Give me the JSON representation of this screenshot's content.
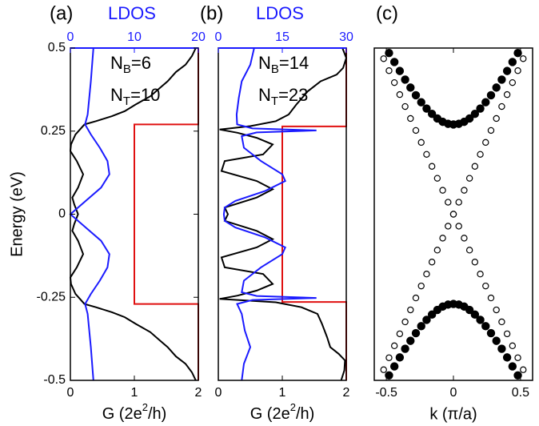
{
  "chart_data": [
    {
      "type": "line",
      "label": "(a)",
      "x2label": "LDOS",
      "ylabel": "Energy (eV)",
      "xlabel": {
        "text": "G (2e",
        "sup": "2",
        "tail": "/h)"
      },
      "annotations": [
        {
          "main": "N",
          "sub": "B",
          "tail": "=6"
        },
        {
          "main": "N",
          "sub": "T",
          "tail": "=10"
        }
      ],
      "xlim": [
        0,
        2
      ],
      "xticks": [
        0,
        1,
        2
      ],
      "x2lim": [
        0,
        20
      ],
      "x2ticks": [
        0,
        10,
        20
      ],
      "ylim": [
        -0.5,
        0.5
      ],
      "yticks": [
        0.5,
        0.25,
        0,
        -0.25,
        -0.5
      ],
      "series": [
        {
          "color": "#e01010",
          "x": [
            2,
            2,
            1,
            1,
            2,
            2
          ],
          "y": [
            0.5,
            0.27,
            0.27,
            -0.27,
            -0.27,
            -0.5
          ]
        },
        {
          "color": "#000000",
          "x": [
            1.96,
            1.9,
            1.8,
            1.65,
            1.52,
            1.4,
            1.25,
            1.02,
            0.85,
            0.65,
            0.4,
            0.22,
            0.08,
            0.01,
            0,
            0.1,
            0.2,
            0.12,
            0.03,
            0.06,
            0.12,
            0.06,
            0.03,
            0.12,
            0.2,
            0.1,
            0,
            0.01,
            0.08,
            0.22,
            0.4,
            0.65,
            0.85,
            1.02,
            1.25,
            1.4,
            1.52,
            1.65,
            1.8,
            1.9,
            1.96
          ],
          "y": [
            0.5,
            0.476,
            0.45,
            0.428,
            0.4,
            0.38,
            0.355,
            0.33,
            0.31,
            0.295,
            0.28,
            0.27,
            0.24,
            0.21,
            0.19,
            0.16,
            0.12,
            0.08,
            0.05,
            0.03,
            0,
            -0.03,
            -0.05,
            -0.08,
            -0.12,
            -0.16,
            -0.19,
            -0.21,
            -0.24,
            -0.27,
            -0.28,
            -0.295,
            -0.31,
            -0.33,
            -0.355,
            -0.38,
            -0.4,
            -0.428,
            -0.45,
            -0.476,
            -0.5
          ]
        },
        {
          "color": "#1a1aff",
          "axis": "x2",
          "x": [
            3.6,
            3.2,
            2.7,
            2.3,
            3.2,
            4.6,
            5.8,
            6.1,
            4.8,
            2.4,
            0,
            2.4,
            4.8,
            6.1,
            5.8,
            4.6,
            3.2,
            2.3,
            2.7,
            3.2,
            3.6
          ],
          "y": [
            0.5,
            0.4,
            0.3,
            0.27,
            0.24,
            0.2,
            0.16,
            0.12,
            0.08,
            0.04,
            0,
            -0.04,
            -0.08,
            -0.12,
            -0.16,
            -0.2,
            -0.24,
            -0.27,
            -0.3,
            -0.4,
            -0.5
          ]
        }
      ]
    },
    {
      "type": "line",
      "label": "(b)",
      "x2label": "LDOS",
      "xlabel": {
        "text": "G (2e",
        "sup": "2",
        "tail": "/h)"
      },
      "annotations": [
        {
          "main": "N",
          "sub": "B",
          "tail": "=14"
        },
        {
          "main": "N",
          "sub": "T",
          "tail": "=23"
        }
      ],
      "xlim": [
        0,
        2
      ],
      "xticks": [
        0,
        1,
        2
      ],
      "x2lim": [
        0,
        30
      ],
      "x2ticks": [
        0,
        15,
        30
      ],
      "ylim": [
        -0.5,
        0.5
      ],
      "series": [
        {
          "color": "#e01010",
          "x": [
            2,
            2,
            1,
            1,
            2,
            2
          ],
          "y": [
            0.5,
            0.264,
            0.264,
            -0.264,
            -0.264,
            -0.5
          ]
        },
        {
          "color": "#000000",
          "x": [
            1.94,
            2,
            1.95,
            1.85,
            1.6,
            1.4,
            1.22,
            1.1,
            0.9,
            0.5,
            0.02,
            0.3,
            0.6,
            0.85,
            0.7,
            0.1,
            0.05,
            0.6,
            0.85,
            0.6,
            0.1,
            0.15,
            0.1,
            0.6,
            0.85,
            0.6,
            0.05,
            0.1,
            0.7,
            0.85,
            0.6,
            0.3,
            0.02,
            0.9,
            1.3,
            1.55,
            1.62,
            1.7,
            1.75,
            1.88,
            1.98,
            1.97,
            1.92
          ],
          "y": [
            0.5,
            0.47,
            0.44,
            0.42,
            0.4,
            0.37,
            0.33,
            0.3,
            0.28,
            0.265,
            0.255,
            0.245,
            0.23,
            0.21,
            0.18,
            0.16,
            0.13,
            0.1,
            0.075,
            0.05,
            0.02,
            0,
            -0.02,
            -0.05,
            -0.075,
            -0.1,
            -0.13,
            -0.16,
            -0.18,
            -0.21,
            -0.23,
            -0.245,
            -0.255,
            -0.265,
            -0.28,
            -0.3,
            -0.33,
            -0.37,
            -0.4,
            -0.42,
            -0.44,
            -0.47,
            -0.5
          ]
        },
        {
          "color": "#1a1aff",
          "axis": "x2",
          "x": [
            8.4,
            7.5,
            5.5,
            4.8,
            4.3,
            4.4,
            8,
            23,
            9,
            5.5,
            6,
            10,
            15,
            15.7,
            11,
            4,
            1.5,
            1.3,
            1.5,
            4,
            11,
            15.7,
            15,
            10,
            6,
            5.5,
            9,
            23,
            8,
            4.4,
            5.5,
            6.2,
            7.5,
            6,
            5.5
          ],
          "y": [
            0.5,
            0.45,
            0.4,
            0.35,
            0.3,
            0.27,
            0.258,
            0.252,
            0.246,
            0.235,
            0.2,
            0.16,
            0.12,
            0.1,
            0.07,
            0.04,
            0.02,
            0,
            -0.02,
            -0.04,
            -0.07,
            -0.1,
            -0.12,
            -0.16,
            -0.2,
            -0.235,
            -0.246,
            -0.252,
            -0.258,
            -0.27,
            -0.3,
            -0.35,
            -0.4,
            -0.45,
            -0.5
          ]
        }
      ]
    },
    {
      "type": "scatter",
      "label": "(c)",
      "xlabel": "k (π/a)",
      "xlim": [
        -0.59,
        0.59
      ],
      "xticks": [
        -0.5,
        0,
        0.5
      ],
      "ylim": [
        -0.5,
        0.5
      ],
      "series": [
        {
          "color": "#000000",
          "marker": "open",
          "x": [
            -0.52,
            -0.48,
            -0.44,
            -0.4,
            -0.36,
            -0.32,
            -0.28,
            -0.24,
            -0.2,
            -0.16,
            -0.12,
            -0.08,
            -0.04,
            0,
            0.04,
            0.08,
            0.12,
            0.16,
            0.2,
            0.24,
            0.28,
            0.32,
            0.36,
            0.4,
            0.44,
            0.48,
            0.52
          ],
          "y": [
            -0.468,
            -0.432,
            -0.396,
            -0.36,
            -0.324,
            -0.288,
            -0.252,
            -0.216,
            -0.18,
            -0.144,
            -0.108,
            -0.072,
            -0.036,
            0,
            0.036,
            0.072,
            0.108,
            0.144,
            0.18,
            0.216,
            0.252,
            0.288,
            0.324,
            0.36,
            0.396,
            0.432,
            0.468
          ]
        },
        {
          "color": "#000000",
          "marker": "open",
          "x": [
            -0.52,
            -0.48,
            -0.44,
            -0.4,
            -0.36,
            -0.32,
            -0.28,
            -0.24,
            -0.2,
            -0.16,
            -0.12,
            -0.08,
            -0.04,
            0,
            0.04,
            0.08,
            0.12,
            0.16,
            0.2,
            0.24,
            0.28,
            0.32,
            0.36,
            0.4,
            0.44,
            0.48,
            0.52
          ],
          "y": [
            0.468,
            0.432,
            0.396,
            0.36,
            0.324,
            0.288,
            0.252,
            0.216,
            0.18,
            0.144,
            0.108,
            0.072,
            0.036,
            0,
            -0.036,
            -0.072,
            -0.108,
            -0.144,
            -0.18,
            -0.216,
            -0.252,
            -0.288,
            -0.324,
            -0.36,
            -0.396,
            -0.432,
            -0.468
          ]
        },
        {
          "color": "#000000",
          "marker": "filled",
          "x": [
            -0.48,
            -0.44,
            -0.4,
            -0.36,
            -0.32,
            -0.28,
            -0.24,
            -0.2,
            -0.16,
            -0.12,
            -0.08,
            -0.04,
            0,
            0.04,
            0.08,
            0.12,
            0.16,
            0.2,
            0.24,
            0.28,
            0.32,
            0.36,
            0.4,
            0.44,
            0.48
          ],
          "y": [
            0.485,
            0.458,
            0.431,
            0.405,
            0.381,
            0.358,
            0.337,
            0.318,
            0.302,
            0.288,
            0.278,
            0.272,
            0.27,
            0.272,
            0.278,
            0.288,
            0.302,
            0.318,
            0.337,
            0.358,
            0.381,
            0.405,
            0.431,
            0.458,
            0.485
          ]
        },
        {
          "color": "#000000",
          "marker": "filled",
          "x": [
            -0.48,
            -0.44,
            -0.4,
            -0.36,
            -0.32,
            -0.28,
            -0.24,
            -0.2,
            -0.16,
            -0.12,
            -0.08,
            -0.04,
            0,
            0.04,
            0.08,
            0.12,
            0.16,
            0.2,
            0.24,
            0.28,
            0.32,
            0.36,
            0.4,
            0.44,
            0.48
          ],
          "y": [
            -0.485,
            -0.458,
            -0.431,
            -0.405,
            -0.381,
            -0.358,
            -0.337,
            -0.318,
            -0.302,
            -0.288,
            -0.278,
            -0.272,
            -0.27,
            -0.272,
            -0.278,
            -0.288,
            -0.302,
            -0.318,
            -0.337,
            -0.358,
            -0.381,
            -0.405,
            -0.431,
            -0.458,
            -0.485
          ]
        }
      ]
    }
  ]
}
